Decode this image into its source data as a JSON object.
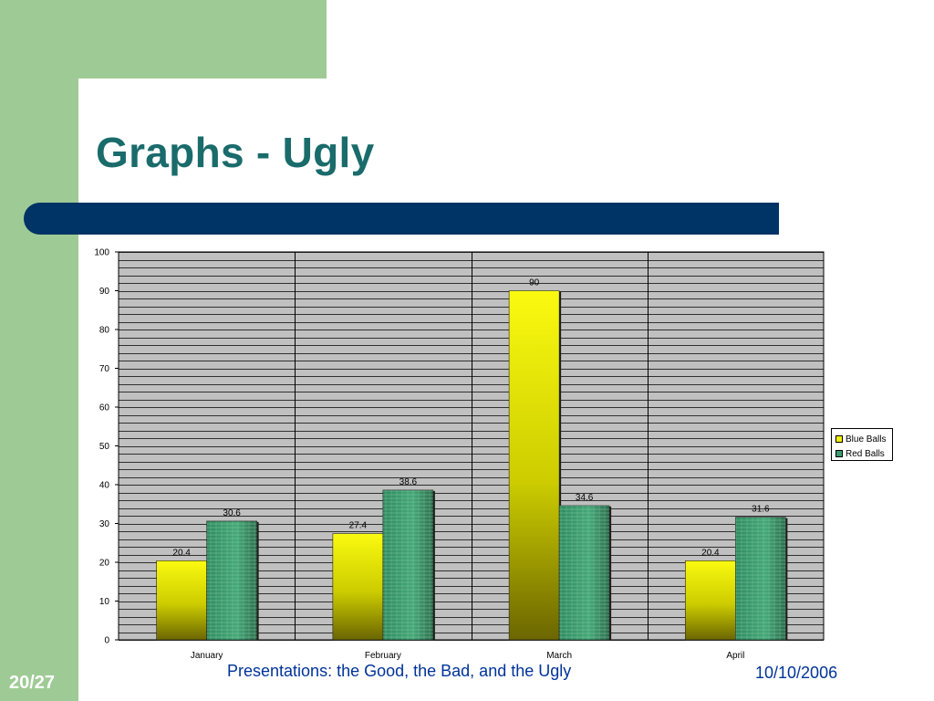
{
  "slide": {
    "title": "Graphs - Ugly",
    "footer": "Presentations: the Good, the Bad, and the Ugly",
    "date": "10/10/2006",
    "page_number": "20/27"
  },
  "colors": {
    "accent_green": "#9ecb95",
    "title_teal": "#1a6b6b",
    "band_navy": "#003366",
    "footer_blue": "#003399",
    "plot_bg": "#c0c0c0",
    "blue_balls_bar": "#f2f200",
    "red_balls_bar": "#3a9a70"
  },
  "chart_data": {
    "type": "bar",
    "categories": [
      "January",
      "February",
      "March",
      "April"
    ],
    "series": [
      {
        "name": "Blue Balls",
        "values": [
          20.4,
          27.4,
          90,
          20.4
        ]
      },
      {
        "name": "Red Balls",
        "values": [
          30.6,
          38.6,
          34.6,
          31.6
        ]
      }
    ],
    "value_labels": [
      [
        "20.4",
        "27.4",
        "90",
        "20.4"
      ],
      [
        "30.6",
        "38.6",
        "34.6",
        "31.6"
      ]
    ],
    "y_ticks": [
      "0",
      "10",
      "20",
      "30",
      "40",
      "50",
      "60",
      "70",
      "80",
      "90",
      "100"
    ],
    "ylim": [
      0,
      100
    ],
    "minor_gridline_step": 2,
    "grid": true,
    "legend_position": "right"
  }
}
